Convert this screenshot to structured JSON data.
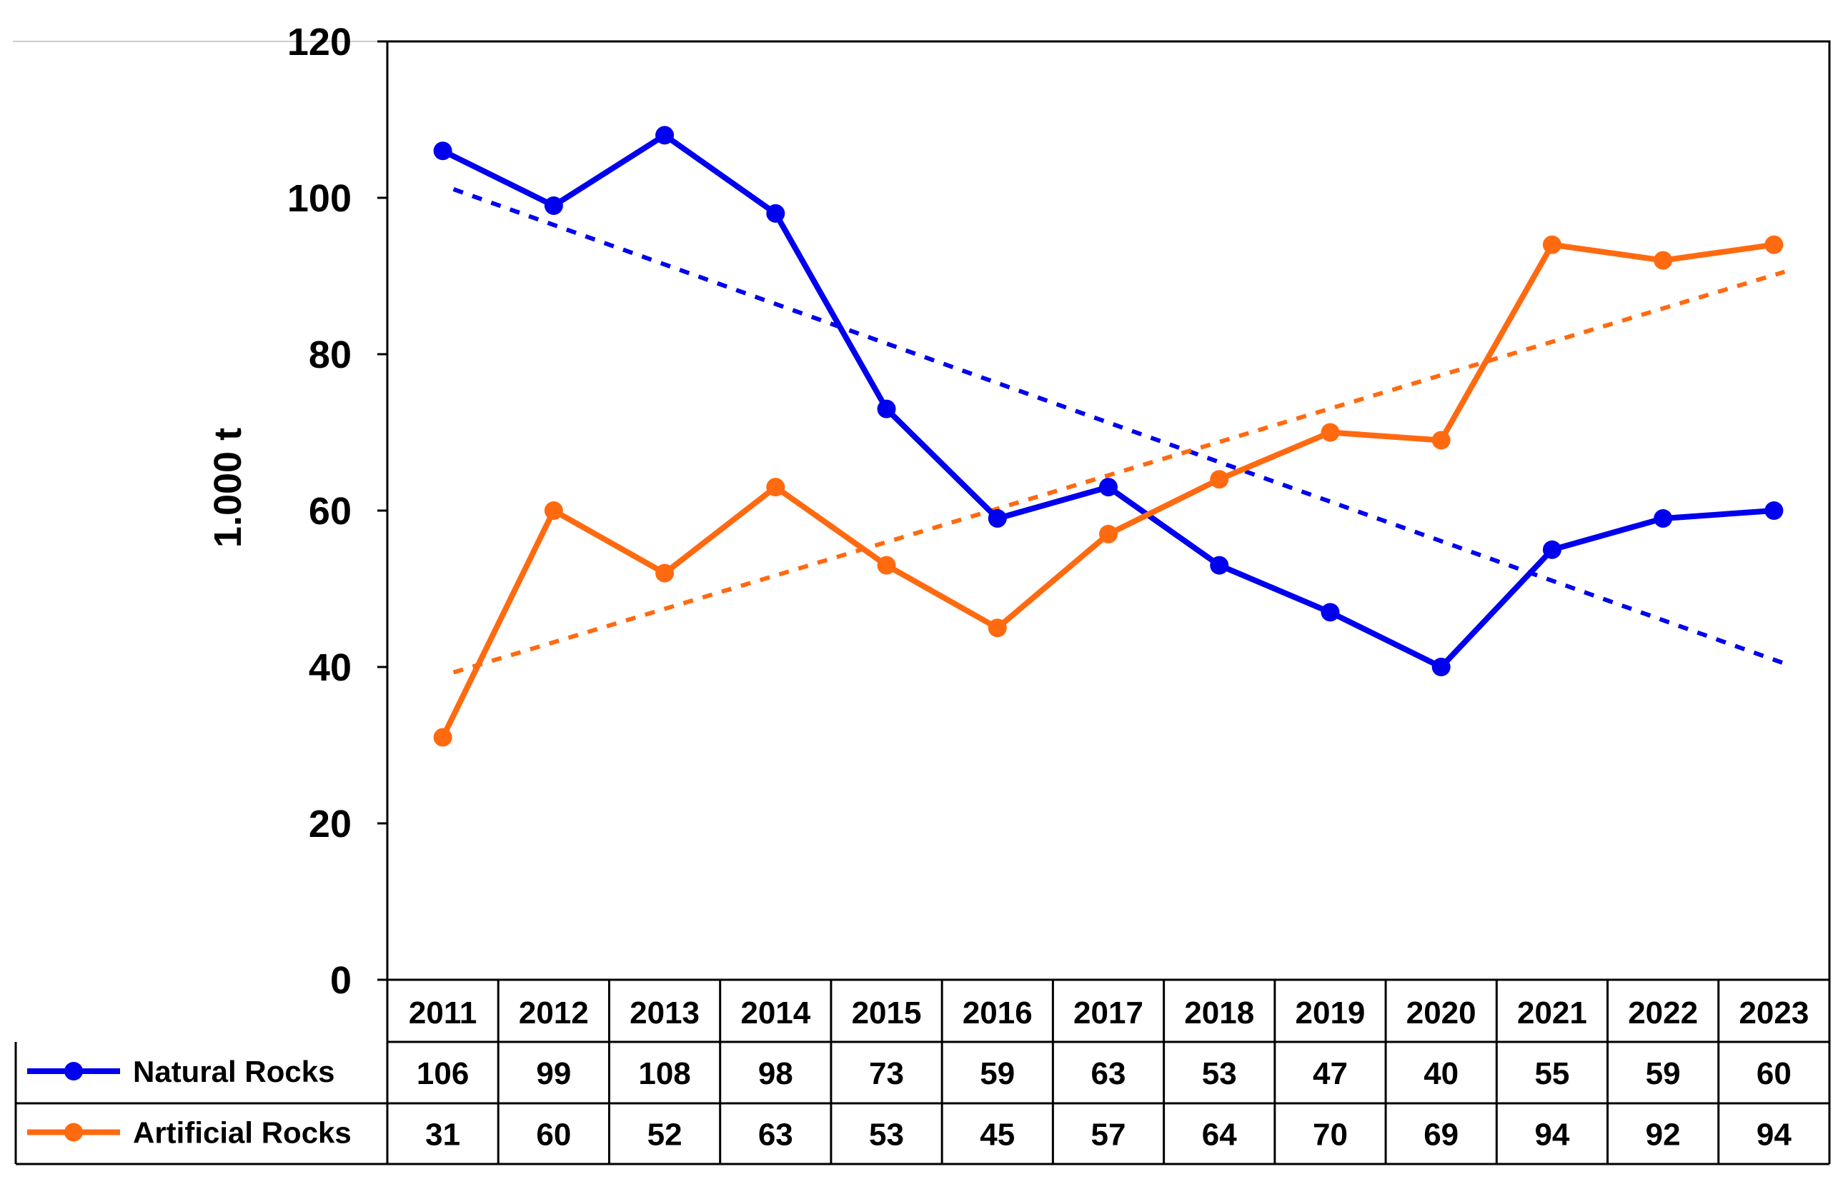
{
  "chart_data": {
    "type": "line",
    "title": "",
    "xlabel": "",
    "ylabel": "1.000 t",
    "ylim": [
      0,
      120
    ],
    "yticks": [
      0,
      20,
      40,
      60,
      80,
      100,
      120
    ],
    "grid": false,
    "categories": [
      "2011",
      "2012",
      "2013",
      "2014",
      "2015",
      "2016",
      "2017",
      "2018",
      "2019",
      "2020",
      "2021",
      "2022",
      "2023"
    ],
    "series": [
      {
        "name": "Natural Rocks",
        "color": "#0000ee",
        "values": [
          106,
          99,
          108,
          98,
          73,
          59,
          63,
          53,
          47,
          40,
          55,
          59,
          60
        ],
        "labels": [
          "106",
          "99",
          "108",
          "98",
          "73",
          "59",
          "63",
          "53",
          "47",
          "40",
          "55",
          "59",
          "60"
        ],
        "trendline": "linear"
      },
      {
        "name": "Artificial Rocks",
        "color": "#ff6a10",
        "values": [
          31,
          60,
          52,
          63,
          53,
          45,
          57,
          64,
          70,
          69,
          94,
          92,
          94
        ],
        "labels": [
          "31",
          "60",
          "52",
          "63",
          "53",
          "45",
          "57",
          "64",
          "70",
          "69",
          "94",
          "92",
          "94"
        ],
        "trendline": "linear"
      }
    ],
    "data_table": true
  }
}
